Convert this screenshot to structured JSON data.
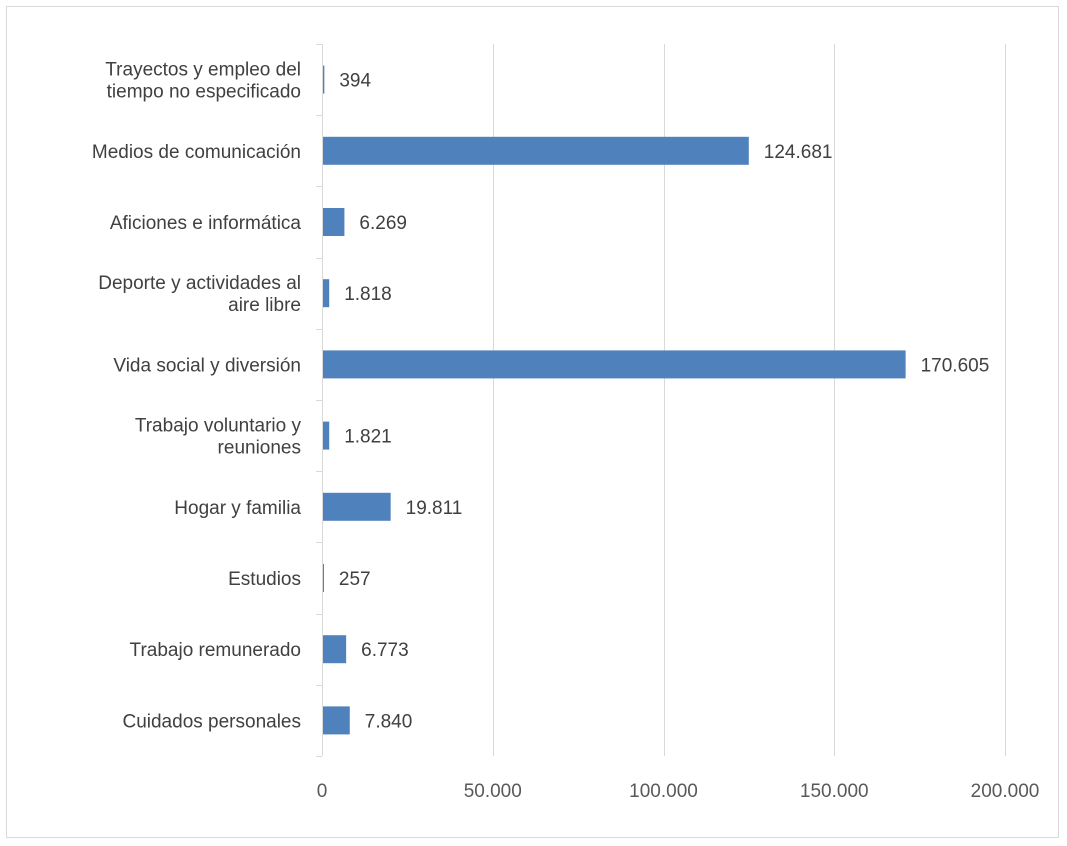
{
  "chart_data": {
    "type": "bar",
    "orientation": "horizontal",
    "categories": [
      [
        "Cuidados personales"
      ],
      [
        "Trabajo remunerado"
      ],
      [
        "Estudios"
      ],
      [
        "Hogar y familia"
      ],
      [
        "Trabajo voluntario y",
        "reuniones"
      ],
      [
        "Vida social y diversión"
      ],
      [
        "Deporte y actividades al",
        "aire libre"
      ],
      [
        "Aficiones e informática"
      ],
      [
        "Medios de comunicación"
      ],
      [
        "Trayectos y empleo del",
        "tiempo no especificado"
      ]
    ],
    "values": [
      7840,
      6773,
      257,
      19811,
      1821,
      170605,
      1818,
      6269,
      124681,
      394
    ],
    "data_labels": [
      "7.840",
      "6.773",
      "257",
      "19.811",
      "1.821",
      "170.605",
      "1.818",
      "6.269",
      "124.681",
      "394"
    ],
    "xlim": [
      0,
      200000
    ],
    "x_ticks": [
      0,
      50000,
      100000,
      150000,
      200000
    ],
    "x_tick_labels": [
      "0",
      "50.000",
      "100.000",
      "150.000",
      "200.000"
    ],
    "title": "",
    "xlabel": "",
    "ylabel": "",
    "grid": "vertical",
    "legend": "none",
    "bar_color": "#4f81bd",
    "grid_color": "#d9d9d9",
    "text_color": "#404040"
  }
}
